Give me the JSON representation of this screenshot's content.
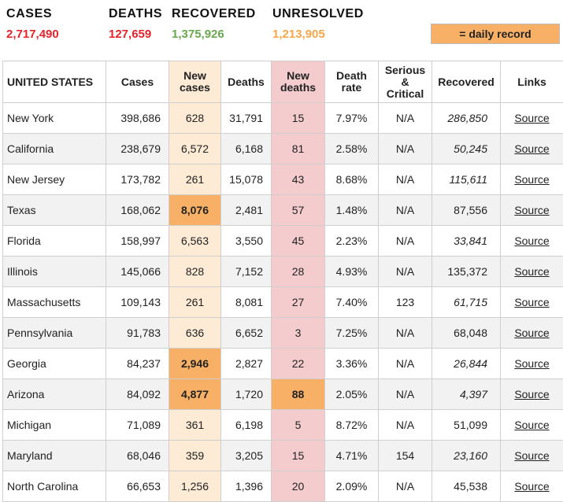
{
  "summary": {
    "cases_label": "CASES",
    "cases_value": "2,717,490",
    "deaths_label": "DEATHS",
    "deaths_value": "127,659",
    "recovered_label": "RECOVERED",
    "recovered_value": "1,375,926",
    "unresolved_label": "UNRESOLVED",
    "unresolved_value": "1,213,905",
    "colors": {
      "cases": "#e8222a",
      "deaths": "#e8222a",
      "recovered": "#6aa84f",
      "unresolved": "#f6a54a"
    }
  },
  "legend": {
    "label": "= daily record",
    "color": "#f7b066"
  },
  "table": {
    "headers": [
      "UNITED STATES",
      "Cases",
      "New cases",
      "Deaths",
      "New deaths",
      "Death rate",
      "Serious & Critical",
      "Recovered",
      "Links"
    ],
    "rows": [
      {
        "state": "New York",
        "cases": "398,686",
        "new_cases": "628",
        "deaths": "31,791",
        "new_deaths": "15",
        "death_rate": "7.97%",
        "serious": "N/A",
        "recovered": "286,850",
        "recovered_italic": true,
        "link": "Source"
      },
      {
        "state": "California",
        "cases": "238,679",
        "new_cases": "6,572",
        "deaths": "6,168",
        "new_deaths": "81",
        "death_rate": "2.58%",
        "serious": "N/A",
        "recovered": "50,245",
        "recovered_italic": true,
        "link": "Source"
      },
      {
        "state": "New Jersey",
        "cases": "173,782",
        "new_cases": "261",
        "deaths": "15,078",
        "new_deaths": "43",
        "death_rate": "8.68%",
        "serious": "N/A",
        "recovered": "115,611",
        "recovered_italic": true,
        "link": "Source"
      },
      {
        "state": "Texas",
        "cases": "168,062",
        "new_cases": "8,076",
        "new_cases_record": true,
        "deaths": "2,481",
        "new_deaths": "57",
        "death_rate": "1.48%",
        "serious": "N/A",
        "recovered": "87,556",
        "recovered_italic": false,
        "link": "Source"
      },
      {
        "state": "Florida",
        "cases": "158,997",
        "new_cases": "6,563",
        "deaths": "3,550",
        "new_deaths": "45",
        "death_rate": "2.23%",
        "serious": "N/A",
        "recovered": "33,841",
        "recovered_italic": true,
        "link": "Source"
      },
      {
        "state": "Illinois",
        "cases": "145,066",
        "new_cases": "828",
        "deaths": "7,152",
        "new_deaths": "28",
        "death_rate": "4.93%",
        "serious": "N/A",
        "recovered": "135,372",
        "recovered_italic": false,
        "link": "Source"
      },
      {
        "state": "Massachusetts",
        "cases": "109,143",
        "new_cases": "261",
        "deaths": "8,081",
        "new_deaths": "27",
        "death_rate": "7.40%",
        "serious": "123",
        "recovered": "61,715",
        "recovered_italic": true,
        "link": "Source"
      },
      {
        "state": "Pennsylvania",
        "cases": "91,783",
        "new_cases": "636",
        "deaths": "6,652",
        "new_deaths": "3",
        "death_rate": "7.25%",
        "serious": "N/A",
        "recovered": "68,048",
        "recovered_italic": false,
        "link": "Source"
      },
      {
        "state": "Georgia",
        "cases": "84,237",
        "new_cases": "2,946",
        "new_cases_record": true,
        "deaths": "2,827",
        "new_deaths": "22",
        "death_rate": "3.36%",
        "serious": "N/A",
        "recovered": "26,844",
        "recovered_italic": true,
        "link": "Source"
      },
      {
        "state": "Arizona",
        "cases": "84,092",
        "new_cases": "4,877",
        "new_cases_record": true,
        "deaths": "1,720",
        "new_deaths": "88",
        "new_deaths_record": true,
        "death_rate": "2.05%",
        "serious": "N/A",
        "recovered": "4,397",
        "recovered_italic": true,
        "link": "Source"
      },
      {
        "state": "Michigan",
        "cases": "71,089",
        "new_cases": "361",
        "deaths": "6,198",
        "new_deaths": "5",
        "death_rate": "8.72%",
        "serious": "N/A",
        "recovered": "51,099",
        "recovered_italic": false,
        "link": "Source"
      },
      {
        "state": "Maryland",
        "cases": "68,046",
        "new_cases": "359",
        "deaths": "3,205",
        "new_deaths": "15",
        "death_rate": "4.71%",
        "serious": "154",
        "recovered": "23,160",
        "recovered_italic": true,
        "link": "Source"
      },
      {
        "state": "North Carolina",
        "cases": "66,653",
        "new_cases": "1,256",
        "deaths": "1,396",
        "new_deaths": "20",
        "death_rate": "2.09%",
        "serious": "N/A",
        "recovered": "45,538",
        "recovered_italic": false,
        "link": "Source"
      }
    ]
  }
}
